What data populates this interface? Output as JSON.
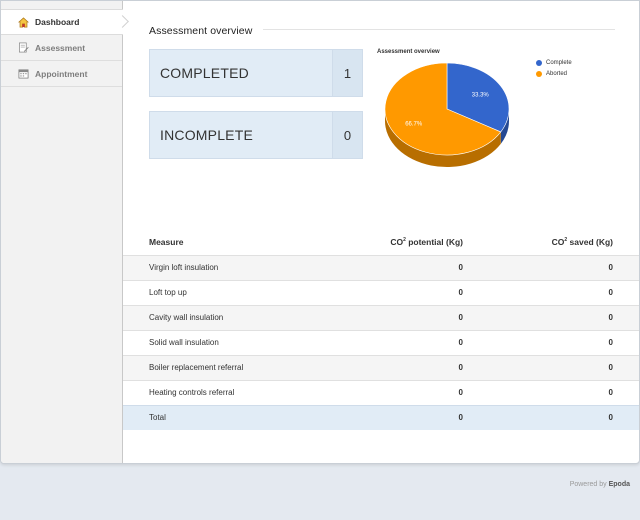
{
  "sidebar": {
    "items": [
      {
        "label": "Dashboard",
        "icon": "home-icon",
        "active": true
      },
      {
        "label": "Assessment",
        "icon": "document-edit-icon",
        "active": false
      },
      {
        "label": "Appointment",
        "icon": "calendar-icon",
        "active": false
      }
    ]
  },
  "overview": {
    "title": "Assessment overview",
    "completed_label": "COMPLETED",
    "completed_count": "1",
    "incomplete_label": "INCOMPLETE",
    "incomplete_count": "0"
  },
  "chart_data": {
    "type": "pie",
    "title": "Assessment overview",
    "categories": [
      "Complete",
      "Aborted"
    ],
    "values": [
      33.3,
      66.7
    ],
    "labels": [
      "33.3%",
      "66.7%"
    ],
    "colors": [
      "#3366cc",
      "#ff9900"
    ],
    "legend_position": "top-right"
  },
  "table": {
    "headers": {
      "measure": "Measure",
      "potential_prefix": "CO",
      "potential_sup": "2",
      "potential_suffix": " potential (Kg)",
      "saved_prefix": "CO",
      "saved_sup": "2",
      "saved_suffix": " saved (Kg)"
    },
    "rows": [
      {
        "measure": "Virgin loft insulation",
        "potential": "0",
        "saved": "0"
      },
      {
        "measure": "Loft top up",
        "potential": "0",
        "saved": "0"
      },
      {
        "measure": "Cavity wall insulation",
        "potential": "0",
        "saved": "0"
      },
      {
        "measure": "Solid wall insulation",
        "potential": "0",
        "saved": "0"
      },
      {
        "measure": "Boiler replacement referral",
        "potential": "0",
        "saved": "0"
      },
      {
        "measure": "Heating controls referral",
        "potential": "0",
        "saved": "0"
      }
    ],
    "total": {
      "measure": "Total",
      "potential": "0",
      "saved": "0"
    }
  },
  "footer": {
    "prefix": "Powered by ",
    "brand": "Epoda"
  }
}
